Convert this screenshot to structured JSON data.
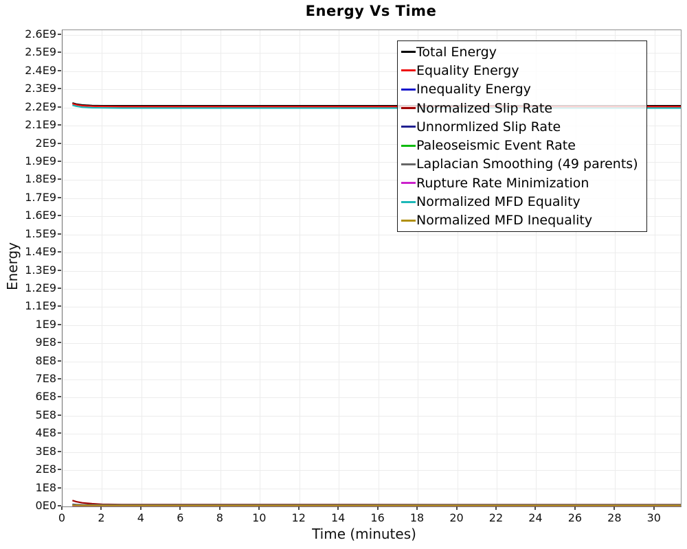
{
  "title": "Energy Vs Time",
  "chart_data": {
    "type": "line",
    "title": "Energy Vs Time",
    "xlabel": "Time (minutes)",
    "ylabel": "Energy",
    "xlim": [
      0,
      31.33
    ],
    "ylim": [
      0,
      2600000000.0
    ],
    "grid": true,
    "legend_position": "top-right-inside",
    "xticks": [
      0,
      2,
      4,
      6,
      8,
      10,
      12,
      14,
      16,
      18,
      20,
      22,
      24,
      26,
      28,
      30
    ],
    "ytick_step": 100000000.0,
    "ytick_labels": [
      "0E0",
      "1E8",
      "2E8",
      "3E8",
      "4E8",
      "5E8",
      "6E8",
      "7E8",
      "8E8",
      "9E8",
      "1E9",
      "1.1E9",
      "1.2E9",
      "1.3E9",
      "1.4E9",
      "1.5E9",
      "1.6E9",
      "1.7E9",
      "1.8E9",
      "1.9E9",
      "2E9",
      "2.1E9",
      "2.2E9",
      "2.3E9",
      "2.4E9",
      "2.5E9",
      "2.6E9"
    ],
    "x": [
      0.5,
      0.7,
      1.0,
      1.5,
      2.0,
      3.0,
      31.33
    ],
    "series": [
      {
        "name": "Total Energy",
        "color": "#000000",
        "values": [
          2225000000.0,
          2219000000.0,
          2214000000.0,
          2211000000.0,
          2210000000.0,
          2210000000.0,
          2210000000.0
        ]
      },
      {
        "name": "Equality Energy",
        "color": "#ee1111",
        "values": [
          2221000000.0,
          2215000000.0,
          2210000000.0,
          2207000000.0,
          2206000000.0,
          2205000000.0,
          2205000000.0
        ]
      },
      {
        "name": "Inequality Energy",
        "color": "#1515cc",
        "values": [
          4000000.0,
          4000000.0,
          4000000.0,
          4000000.0,
          4000000.0,
          4000000.0,
          4000000.0
        ]
      },
      {
        "name": "Normalized Slip Rate",
        "color": "#a00000",
        "values": [
          33000000.0,
          26000000.0,
          20000000.0,
          15000000.0,
          12000000.0,
          10500000.0,
          10000000.0
        ]
      },
      {
        "name": "Unnormlized Slip Rate",
        "color": "#202090",
        "values": [
          12000000.0,
          10000000.0,
          9000000.0,
          8500000.0,
          8200000.0,
          8000000.0,
          8000000.0
        ]
      },
      {
        "name": "Paleoseismic Event Rate",
        "color": "#0fbb0f",
        "values": [
          7000000.0,
          7000000.0,
          7000000.0,
          7000000.0,
          7000000.0,
          7000000.0,
          7000000.0
        ]
      },
      {
        "name": "Laplacian Smoothing (49 parents)",
        "color": "#666666",
        "values": [
          10000000.0,
          9500000.0,
          9200000.0,
          9000000.0,
          9000000.0,
          9000000.0,
          9000000.0
        ]
      },
      {
        "name": "Rupture Rate Minimization",
        "color": "#cc22cc",
        "values": [
          3000000.0,
          3000000.0,
          3000000.0,
          3000000.0,
          3000000.0,
          3000000.0,
          3000000.0
        ]
      },
      {
        "name": "Normalized MFD Equality",
        "color": "#1db8b8",
        "values": [
          2213000000.0,
          2207000000.0,
          2202000000.0,
          2199000000.0,
          2198000000.0,
          2197000000.0,
          2197000000.0
        ]
      },
      {
        "name": "Normalized MFD Inequality",
        "color": "#b0900f",
        "values": [
          6000000.0,
          5500000.0,
          5000000.0,
          5000000.0,
          5000000.0,
          5000000.0,
          5000000.0
        ]
      }
    ]
  },
  "colors": {
    "grid": "#ececec",
    "spine": "#8f8f8f",
    "tick": "#4a4a4a",
    "text": "#111111",
    "legend_border": "#1a1a1a",
    "legend_bg": "rgba(255,255,255,0.82)"
  }
}
